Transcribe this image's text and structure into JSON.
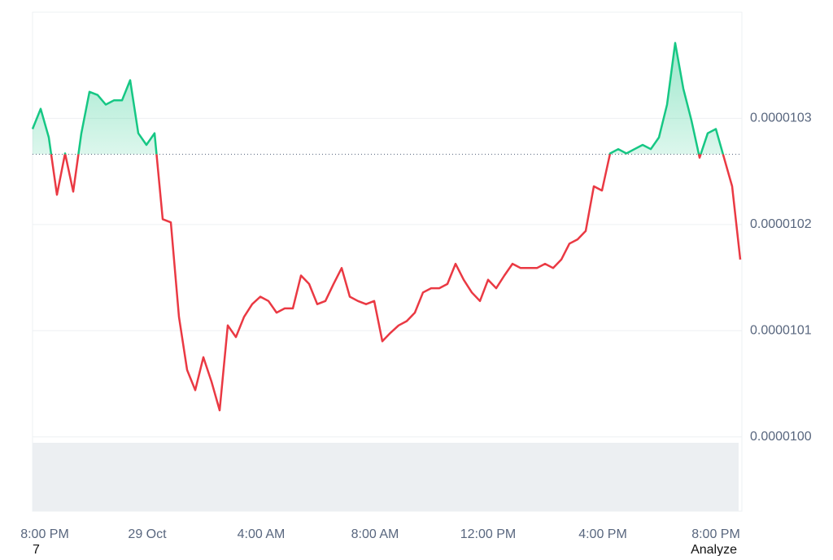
{
  "chart_data": {
    "type": "line",
    "values": [
      1.029e-05,
      1.0309e-05,
      1.0282e-05,
      1.0228e-05,
      1.0267e-05,
      1.0231e-05,
      1.0286e-05,
      1.0325e-05,
      1.0322e-05,
      1.0313e-05,
      1.0317e-05,
      1.0317e-05,
      1.0336e-05,
      1.0286e-05,
      1.0275e-05,
      1.0286e-05,
      1.0205e-05,
      1.0202e-05,
      1.0113e-05,
      1.0063e-05,
      1.0044e-05,
      1.0075e-05,
      1.0052e-05,
      1.0025e-05,
      1.0105e-05,
      1.0094e-05,
      1.0113e-05,
      1.0125e-05,
      1.0132e-05,
      1.0128e-05,
      1.0117e-05,
      1.0121e-05,
      1.0121e-05,
      1.0152e-05,
      1.0144e-05,
      1.0125e-05,
      1.0128e-05,
      1.0144e-05,
      1.0159e-05,
      1.0132e-05,
      1.0128e-05,
      1.0125e-05,
      1.0128e-05,
      1.009e-05,
      1.0098e-05,
      1.0105e-05,
      1.0109e-05,
      1.0117e-05,
      1.0136e-05,
      1.014e-05,
      1.014e-05,
      1.0144e-05,
      1.0163e-05,
      1.0148e-05,
      1.0136e-05,
      1.0128e-05,
      1.0148e-05,
      1.014e-05,
      1.0152e-05,
      1.0163e-05,
      1.0159e-05,
      1.0159e-05,
      1.0159e-05,
      1.0163e-05,
      1.0159e-05,
      1.0167e-05,
      1.0182e-05,
      1.0186e-05,
      1.0194e-05,
      1.0236e-05,
      1.0232e-05,
      1.0267e-05,
      1.0271e-05,
      1.0267e-05,
      1.0271e-05,
      1.0275e-05,
      1.0271e-05,
      1.0282e-05,
      1.0313e-05,
      1.0371e-05,
      1.0328e-05,
      1.0298e-05,
      1.0263e-05,
      1.0286e-05,
      1.029e-05,
      1.0263e-05,
      1.0236e-05,
      1.0167e-05
    ],
    "baseline": 1.02662e-05,
    "up_color": "#16c784",
    "down_color": "#ea3943",
    "xlim": [
      0,
      87
    ],
    "xticks": [
      {
        "value": 1.5,
        "label": "8:00 PM"
      },
      {
        "value": 14.1,
        "label": "29 Oct"
      },
      {
        "value": 28.1,
        "label": "4:00 AM"
      },
      {
        "value": 42.1,
        "label": "8:00 AM"
      },
      {
        "value": 56,
        "label": "12:00 PM"
      },
      {
        "value": 70.1,
        "label": "4:00 PM"
      },
      {
        "value": 84,
        "label": "8:00 PM"
      }
    ],
    "ylim": [
      9.93e-06,
      1.04e-05
    ],
    "yticks": [
      {
        "value": 1e-05,
        "label": "0.0000100"
      },
      1.01e-05,
      1.02e-05,
      1.03e-05
    ],
    "grid": true
  },
  "footer": {
    "left": "7",
    "right": "Analyze"
  }
}
